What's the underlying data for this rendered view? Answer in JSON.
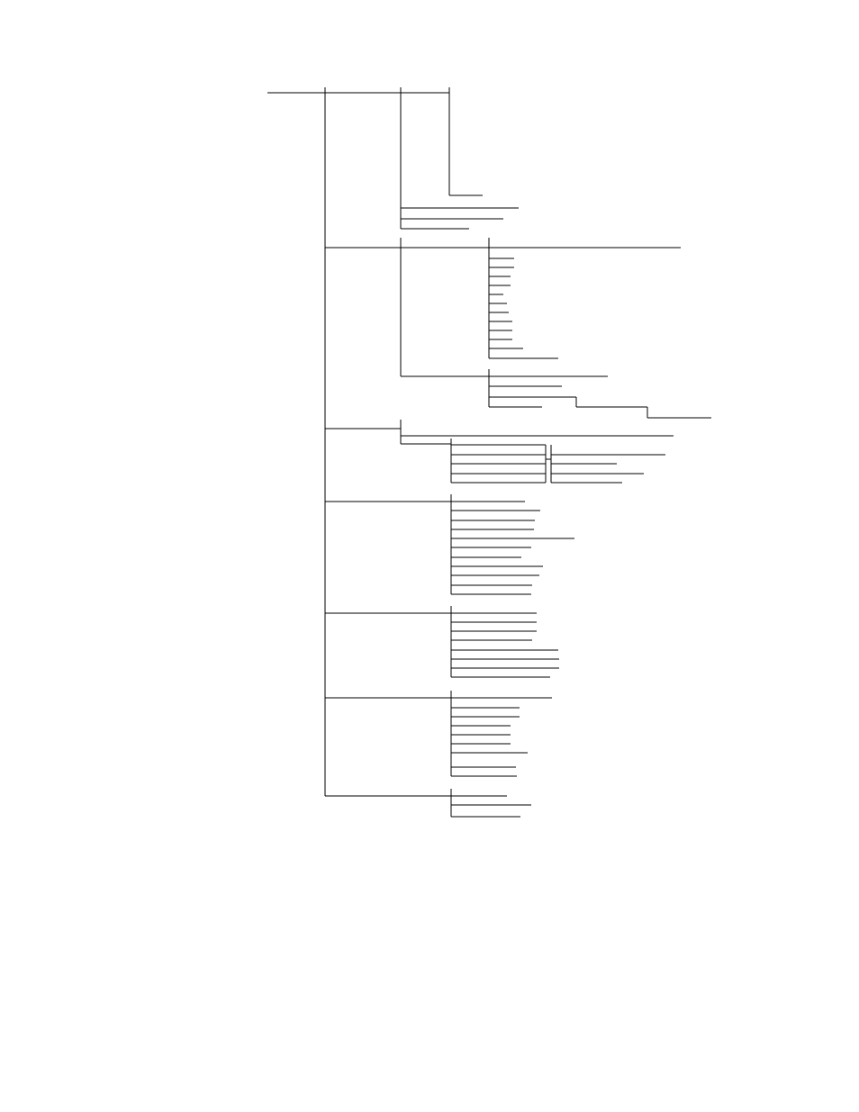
{
  "diagram": {
    "type": "tree",
    "line_color": "#000000",
    "background": "#ffffff",
    "labels_printed": false
  }
}
